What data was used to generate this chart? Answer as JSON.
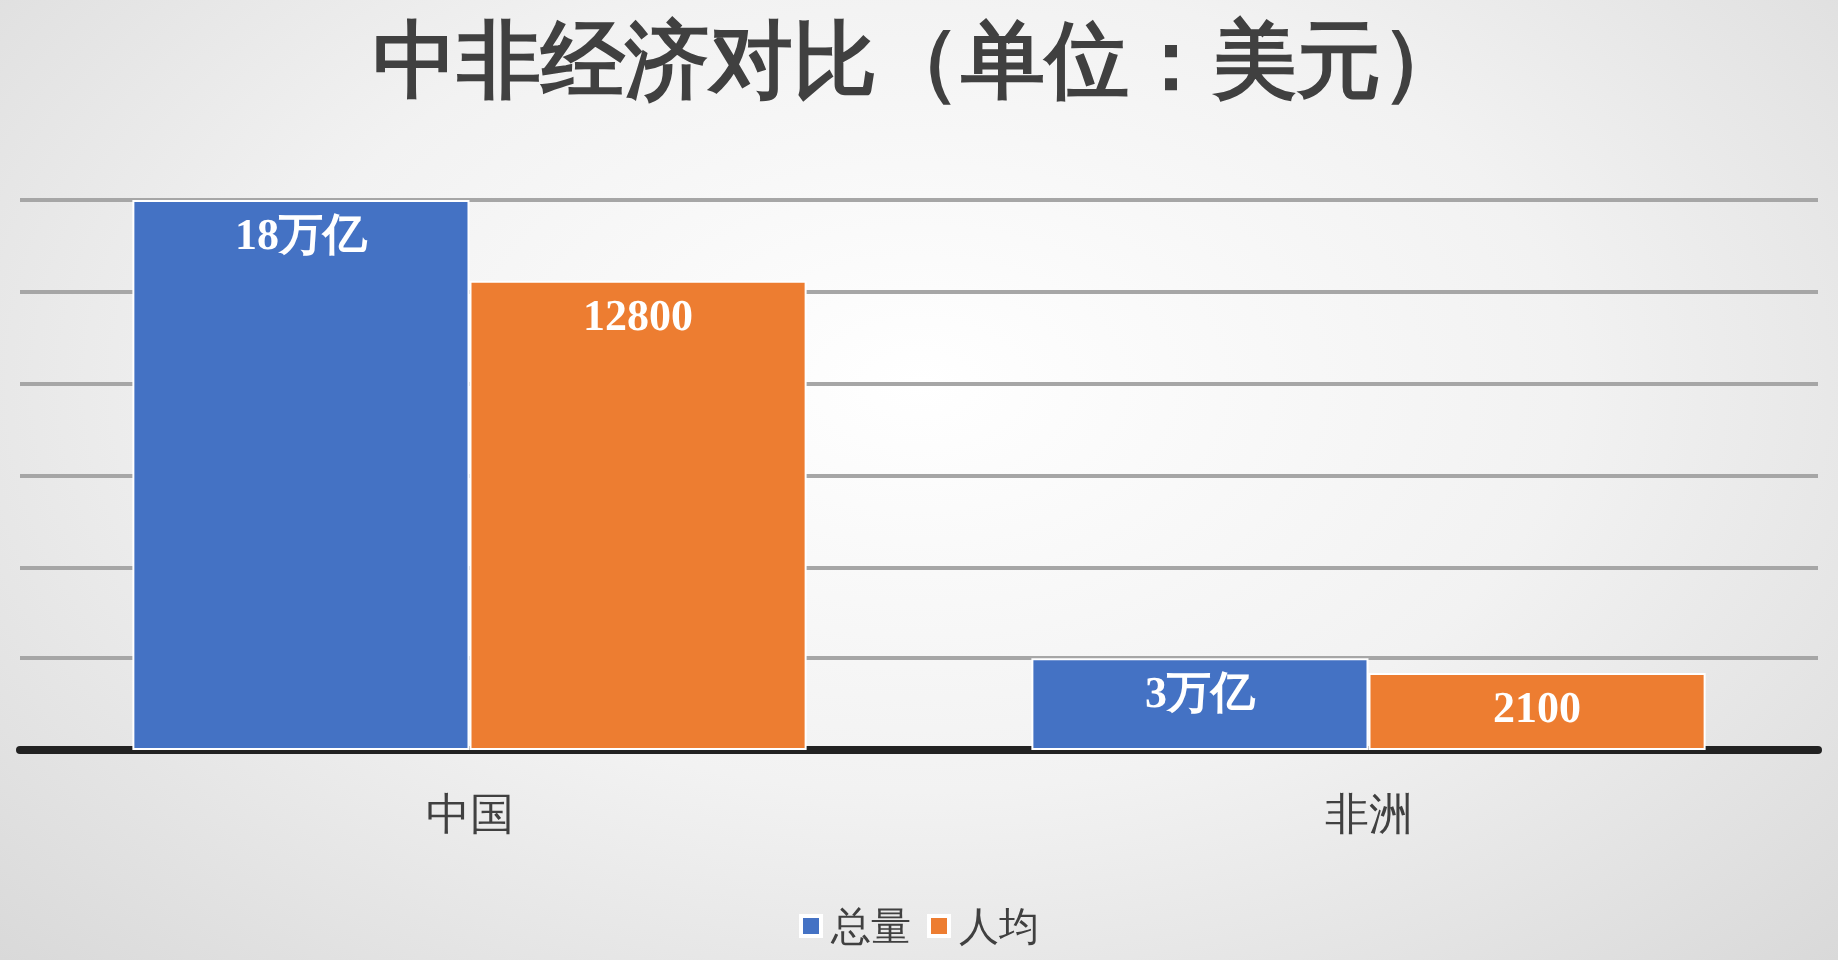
{
  "chart_data": {
    "type": "bar",
    "title": "中非经济对比（单位：美元）",
    "categories": [
      "中国",
      "非洲"
    ],
    "grid": true,
    "legend": "bottom",
    "series": [
      {
        "name": "总量",
        "color": "#4472c4",
        "values": [
          18,
          3
        ],
        "value_labels": [
          "18万亿",
          "3万亿"
        ]
      },
      {
        "name": "人均",
        "color": "#ed7d31",
        "axis": "y2",
        "values": [
          12800,
          2100
        ],
        "value_labels": [
          "12800",
          "2100"
        ]
      }
    ]
  }
}
